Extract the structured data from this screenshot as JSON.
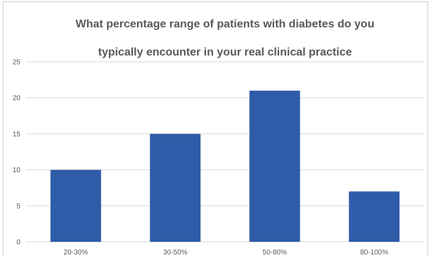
{
  "chart_data": {
    "type": "bar",
    "title_lines": [
      "What percentage range of patients with diabetes do you",
      "typically encounter in your real clinical practice"
    ],
    "categories": [
      "20-30%",
      "30-50%",
      "50-80%",
      "80-100%"
    ],
    "values": [
      10,
      15,
      21,
      7
    ],
    "ylim": [
      0,
      25
    ],
    "yticks": [
      0,
      5,
      10,
      15,
      20,
      25
    ],
    "grid": true,
    "legend": "none",
    "bar_color": "#2f5ca8",
    "grid_color": "#d9d9d9"
  }
}
